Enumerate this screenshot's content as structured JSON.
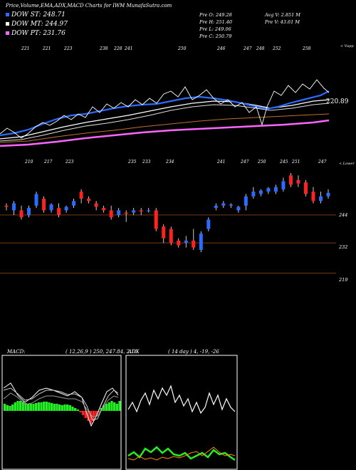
{
  "header": {
    "title": "Price,Volume,EMA,ADX,MACD Charts for IWM MunafaSutra.com"
  },
  "legend": [
    {
      "label": "DOW ST: 248.71",
      "color": "#2b6bff"
    },
    {
      "label": "DOW MT: 244.97",
      "color": "#ffffff"
    },
    {
      "label": "DOW PT: 231.76",
      "color": "#ff66ff"
    }
  ],
  "info": {
    "prev_open": "Pre   O: 249.28",
    "prev_high": "Pre   H: 251.40",
    "prev_low": "Pre   L: 249.06",
    "prev_close": "Pre   C: 250.79",
    "avg_vol": "Avg V: 2.851 M",
    "pre_vol": "Pre   V: 43.61 M"
  },
  "panel_labels": {
    "upper_right": "< Vupp",
    "lower_right": "< Lower",
    "last_price": "220.89"
  },
  "colors": {
    "ema_st": "#2b6bff",
    "ema_mt": "#ffffff",
    "ema_pt": "#ff66ff",
    "ema_lt": "#c07030",
    "up_candle": "#2b6bff",
    "down_candle": "#ff2222",
    "price_line": "#ffffff",
    "hline": "#7a3a10",
    "macd_hist": "#22ee22",
    "macd_hist_neg": "#ff2222",
    "adx_plus": "#22ee22",
    "adx_minus": "#ff8800"
  },
  "macd": {
    "title": "MACD:",
    "params": "( 12,26,9 ) 250, 247.84, 2.16"
  },
  "adx": {
    "title": "ADX",
    "params": "( 14  day ) 4,  -19,  -26"
  },
  "chart_data": {
    "type": "candlestick",
    "price_axis": {
      "ticks": [
        {
          "label": "244",
          "value": 244
        },
        {
          "label": "232",
          "value": 232
        },
        {
          "label": "219",
          "value": 219
        }
      ],
      "ylim": [
        214,
        262
      ]
    },
    "upper_numbers": [
      "221",
      "221",
      "223",
      "238",
      "228",
      "241",
      "250",
      "246",
      "247",
      "248",
      "252",
      "258"
    ],
    "lower_numbers": [
      "210",
      "217",
      "223",
      "235",
      "233",
      "234",
      "241",
      "247",
      "250",
      "245",
      "251",
      "247"
    ],
    "candles": [
      {
        "o": 248,
        "h": 249,
        "l": 246,
        "c": 247.5
      },
      {
        "o": 246,
        "h": 250,
        "l": 244,
        "c": 249
      },
      {
        "o": 246,
        "h": 248,
        "l": 242,
        "c": 243
      },
      {
        "o": 244,
        "h": 248,
        "l": 243,
        "c": 247
      },
      {
        "o": 248,
        "h": 254,
        "l": 247,
        "c": 253
      },
      {
        "o": 251,
        "h": 252,
        "l": 245,
        "c": 246
      },
      {
        "o": 246,
        "h": 249,
        "l": 245,
        "c": 248.5
      },
      {
        "o": 247,
        "h": 249,
        "l": 243,
        "c": 244
      },
      {
        "o": 246,
        "h": 248,
        "l": 245,
        "c": 247.5
      },
      {
        "o": 248,
        "h": 251,
        "l": 247,
        "c": 250
      },
      {
        "o": 254,
        "h": 255,
        "l": 249,
        "c": 251
      },
      {
        "o": 251,
        "h": 252,
        "l": 249,
        "c": 250
      },
      {
        "o": 249,
        "h": 250,
        "l": 246,
        "c": 247.5
      },
      {
        "o": 247,
        "h": 248,
        "l": 245,
        "c": 246
      },
      {
        "o": 246,
        "h": 248,
        "l": 242,
        "c": 243
      },
      {
        "o": 244,
        "h": 247,
        "l": 243,
        "c": 246
      },
      {
        "o": 245,
        "h": 246,
        "l": 241,
        "c": 244.5
      },
      {
        "o": 245,
        "h": 247,
        "l": 244,
        "c": 246
      },
      {
        "o": 246,
        "h": 247,
        "l": 244,
        "c": 245.5
      },
      {
        "o": 246,
        "h": 247,
        "l": 245,
        "c": 246
      },
      {
        "o": 246,
        "h": 247,
        "l": 237,
        "c": 238
      },
      {
        "o": 239,
        "h": 240,
        "l": 232,
        "c": 234
      },
      {
        "o": 238,
        "h": 239,
        "l": 231,
        "c": 232
      },
      {
        "o": 233,
        "h": 234,
        "l": 230,
        "c": 231
      },
      {
        "o": 232,
        "h": 235,
        "l": 230,
        "c": 233
      },
      {
        "o": 233,
        "h": 238,
        "l": 229,
        "c": 230
      },
      {
        "o": 229,
        "h": 237,
        "l": 228,
        "c": 236
      },
      {
        "o": 238,
        "h": 243,
        "l": 237,
        "c": 242
      },
      {
        "o": 247,
        "h": 249,
        "l": 246,
        "c": 248
      },
      {
        "o": 248,
        "h": 250,
        "l": 247,
        "c": 249
      },
      {
        "o": 248,
        "h": 249,
        "l": 247,
        "c": 248.5
      },
      {
        "o": 246,
        "h": 248,
        "l": 245,
        "c": 247.5
      },
      {
        "o": 248,
        "h": 253,
        "l": 246,
        "c": 252
      },
      {
        "o": 252,
        "h": 256,
        "l": 251,
        "c": 254
      },
      {
        "o": 253,
        "h": 255,
        "l": 252,
        "c": 254.5
      },
      {
        "o": 254,
        "h": 256,
        "l": 253,
        "c": 255.5
      },
      {
        "o": 254,
        "h": 257,
        "l": 253,
        "c": 256
      },
      {
        "o": 255,
        "h": 260,
        "l": 254,
        "c": 258.5
      },
      {
        "o": 261,
        "h": 262,
        "l": 256,
        "c": 257
      },
      {
        "o": 259,
        "h": 261,
        "l": 256,
        "c": 257.5
      },
      {
        "o": 258,
        "h": 259,
        "l": 252,
        "c": 253
      },
      {
        "o": 254,
        "h": 256,
        "l": 249,
        "c": 250
      },
      {
        "o": 250,
        "h": 254,
        "l": 249,
        "c": 252
      },
      {
        "o": 252,
        "h": 255,
        "l": 251,
        "c": 253.5
      }
    ]
  }
}
